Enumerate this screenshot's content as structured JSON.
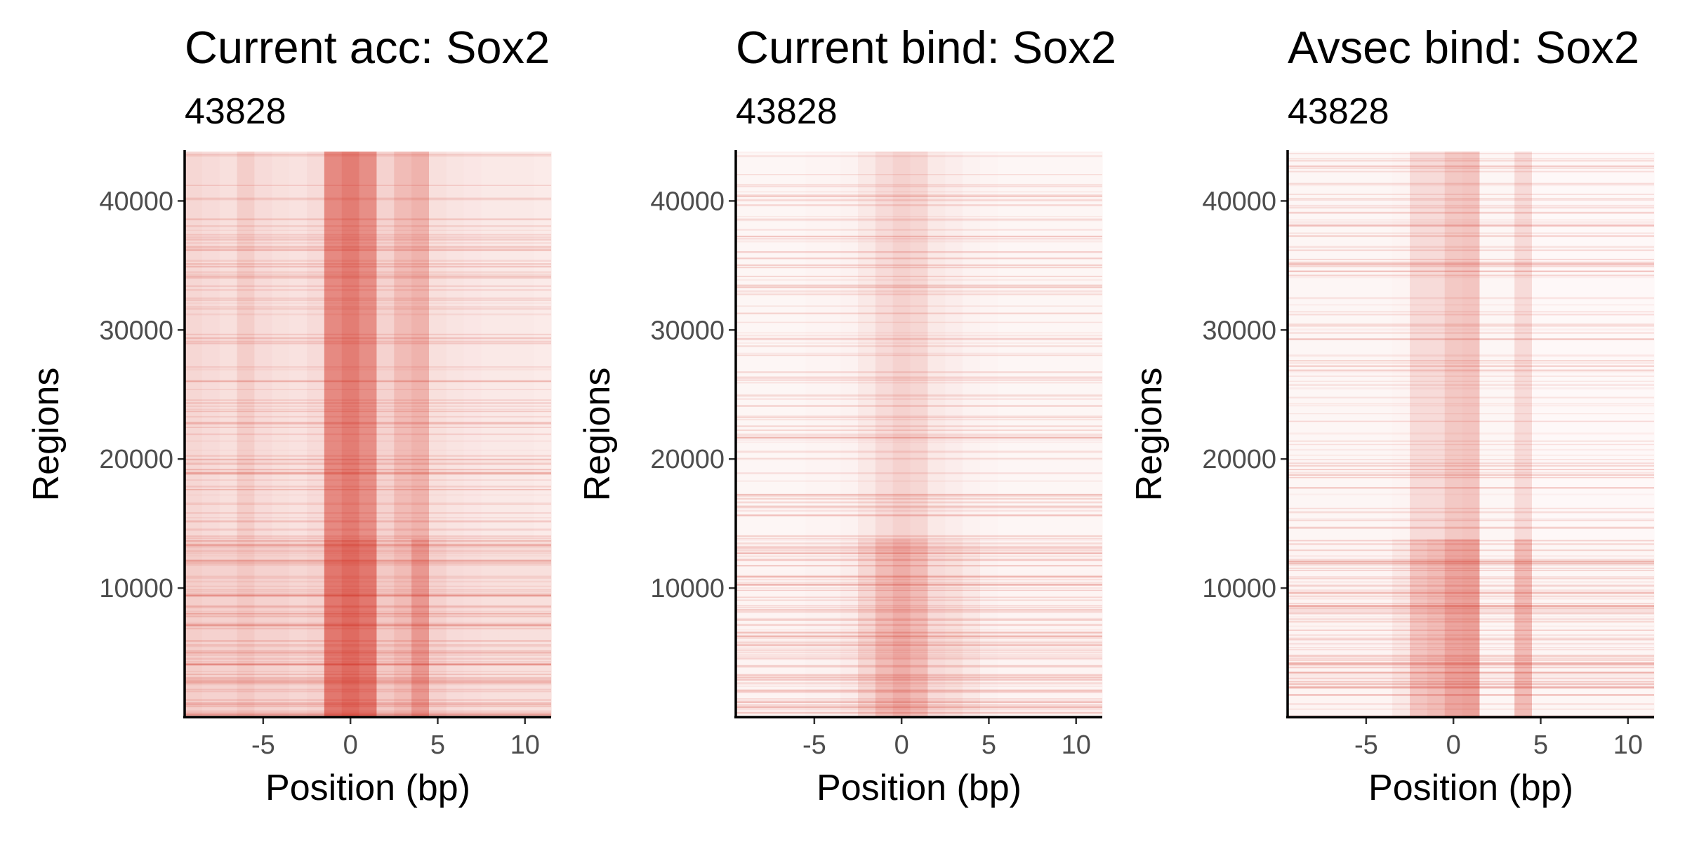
{
  "palette": {
    "low": "#f2f5fb",
    "zero": "#ffffff",
    "high": "#cf1e0f",
    "axis": "#000000",
    "tick_text": "#4d4d4d"
  },
  "chart_data": [
    {
      "type": "heatmap",
      "title": "Current acc: Sox2",
      "subtitle": "43828",
      "xlabel": "Position (bp)",
      "ylabel": "Regions",
      "x_ticks": [
        "-5",
        "0",
        "5",
        "10"
      ],
      "y_ticks": [
        "10000",
        "20000",
        "30000",
        "40000"
      ],
      "xlim": [
        -9.5,
        11.5
      ],
      "ylim": [
        0,
        43828
      ],
      "x": [
        -9,
        -8,
        -7,
        -6,
        -5,
        -4,
        -3,
        -2,
        -1,
        0,
        1,
        2,
        3,
        4,
        5,
        6,
        7,
        8,
        9,
        10,
        11
      ],
      "row_groups": [
        {
          "from": 13800,
          "to": 43828,
          "values": [
            0.18,
            0.16,
            0.14,
            0.22,
            0.16,
            0.14,
            0.13,
            0.16,
            0.52,
            0.58,
            0.5,
            0.2,
            0.3,
            0.34,
            0.14,
            0.12,
            0.11,
            0.1,
            0.1,
            0.1,
            0.09
          ]
        },
        {
          "from": 0,
          "to": 13800,
          "values": [
            0.22,
            0.2,
            0.2,
            0.24,
            0.2,
            0.2,
            0.18,
            0.2,
            0.6,
            0.66,
            0.6,
            0.24,
            0.3,
            0.46,
            0.2,
            0.16,
            0.15,
            0.14,
            0.14,
            0.14,
            0.14
          ]
        }
      ]
    },
    {
      "type": "heatmap",
      "title": "Current bind: Sox2",
      "subtitle": "43828",
      "xlabel": "Position (bp)",
      "ylabel": "Regions",
      "x_ticks": [
        "-5",
        "0",
        "5",
        "10"
      ],
      "y_ticks": [
        "10000",
        "20000",
        "30000",
        "40000"
      ],
      "xlim": [
        -9.5,
        11.5
      ],
      "ylim": [
        0,
        43828
      ],
      "x": [
        -9,
        -8,
        -7,
        -6,
        -5,
        -4,
        -3,
        -2,
        -1,
        0,
        1,
        2,
        3,
        4,
        5,
        6,
        7,
        8,
        9,
        10,
        11
      ],
      "row_groups": [
        {
          "from": 13800,
          "to": 43828,
          "values": [
            0.04,
            0.04,
            0.04,
            0.04,
            0.05,
            0.05,
            0.06,
            0.1,
            0.16,
            0.2,
            0.18,
            0.1,
            0.08,
            0.06,
            0.05,
            0.04,
            0.04,
            0.04,
            0.04,
            0.04,
            0.04
          ]
        },
        {
          "from": 0,
          "to": 13800,
          "values": [
            0.05,
            0.05,
            0.05,
            0.05,
            0.06,
            0.06,
            0.08,
            0.18,
            0.3,
            0.36,
            0.3,
            0.16,
            0.14,
            0.1,
            0.06,
            0.05,
            0.05,
            0.05,
            0.05,
            0.05,
            0.05
          ]
        }
      ]
    },
    {
      "type": "heatmap",
      "title": "Avsec bind: Sox2",
      "subtitle": "43828",
      "xlabel": "Position (bp)",
      "ylabel": "Regions",
      "x_ticks": [
        "-5",
        "0",
        "5",
        "10"
      ],
      "y_ticks": [
        "10000",
        "20000",
        "30000",
        "40000"
      ],
      "xlim": [
        -9.5,
        11.5
      ],
      "ylim": [
        0,
        43828
      ],
      "x": [
        -9,
        -8,
        -7,
        -6,
        -5,
        -4,
        -3,
        -2,
        -1,
        0,
        1,
        2,
        3,
        4,
        5,
        6,
        7,
        8,
        9,
        10,
        11
      ],
      "row_groups": [
        {
          "from": 13800,
          "to": 43828,
          "values": [
            0.04,
            0.04,
            0.04,
            0.04,
            0.04,
            0.04,
            0.05,
            0.16,
            0.16,
            0.24,
            0.26,
            0.04,
            0.04,
            0.16,
            0.03,
            0.03,
            0.03,
            0.03,
            0.03,
            0.03,
            0.03
          ]
        },
        {
          "from": 0,
          "to": 13800,
          "values": [
            0.05,
            0.05,
            0.05,
            0.05,
            0.05,
            0.05,
            0.1,
            0.26,
            0.3,
            0.4,
            0.42,
            0.04,
            0.04,
            0.3,
            0.04,
            0.04,
            0.04,
            0.04,
            0.04,
            0.04,
            0.04
          ]
        }
      ]
    }
  ]
}
